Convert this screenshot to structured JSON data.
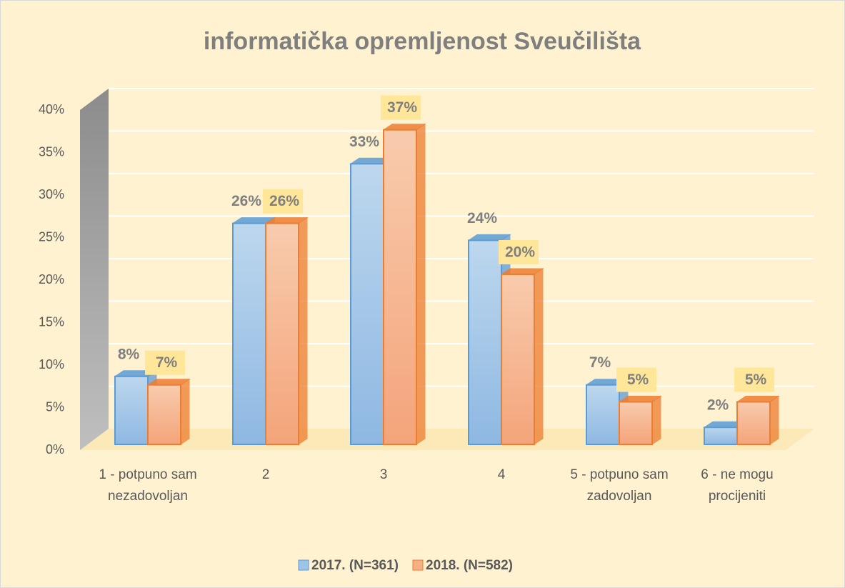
{
  "chart_data": {
    "type": "bar",
    "title": "informatička opremljenost Sveučilišta",
    "categories": [
      "1 - potpuno sam nezadovoljan",
      "2",
      "3",
      "4",
      "5 - potpuno sam zadovoljan",
      "6 - ne mogu procijeniti"
    ],
    "series": [
      {
        "name": "2017. (N=361)",
        "color": "#9dc3e6",
        "values": [
          8,
          26,
          33,
          24,
          7,
          2
        ],
        "value_labels": [
          "8%",
          "26%",
          "33%",
          "24%",
          "7%",
          "2%"
        ]
      },
      {
        "name": "2018. (N=582)",
        "color": "#f4b183",
        "values": [
          7,
          26,
          37,
          20,
          5,
          5
        ],
        "value_labels": [
          "7%",
          "26%",
          "37%",
          "20%",
          "5%",
          "5%"
        ]
      }
    ],
    "ylim": [
      0,
      40
    ],
    "yticks": [
      {
        "value": 0,
        "label": "0%"
      },
      {
        "value": 5,
        "label": "5%"
      },
      {
        "value": 10,
        "label": "10%"
      },
      {
        "value": 15,
        "label": "15%"
      },
      {
        "value": 20,
        "label": "20%"
      },
      {
        "value": 25,
        "label": "25%"
      },
      {
        "value": 30,
        "label": "30%"
      },
      {
        "value": 35,
        "label": "35%"
      },
      {
        "value": 40,
        "label": "40%"
      }
    ],
    "grid": true,
    "legend": "bottom"
  }
}
